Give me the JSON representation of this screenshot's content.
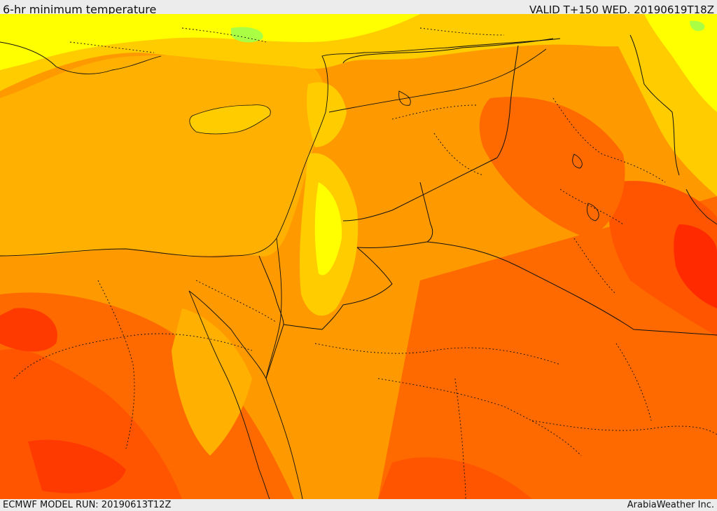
{
  "header": {
    "title": "6-hr minimum temperature",
    "valid": "VALID T+150 WED. 20190619T18Z"
  },
  "footer": {
    "model_run": "ECMWF MODEL RUN: 20190613T12Z",
    "credit": "ArabiaWeather Inc."
  },
  "colors": {
    "warm_yellow": "#ffff00",
    "gold": "#ffcc00",
    "amber": "#ffb000",
    "light_orange": "#ff9900",
    "orange": "#ff7a00",
    "red_orange": "#ff5500",
    "red": "#ff2a00",
    "green_patch": "#aaff44",
    "border_line": "#111111"
  },
  "map": {
    "variable": "minimum temperature",
    "region": "Eastern Mediterranean / Middle East"
  }
}
